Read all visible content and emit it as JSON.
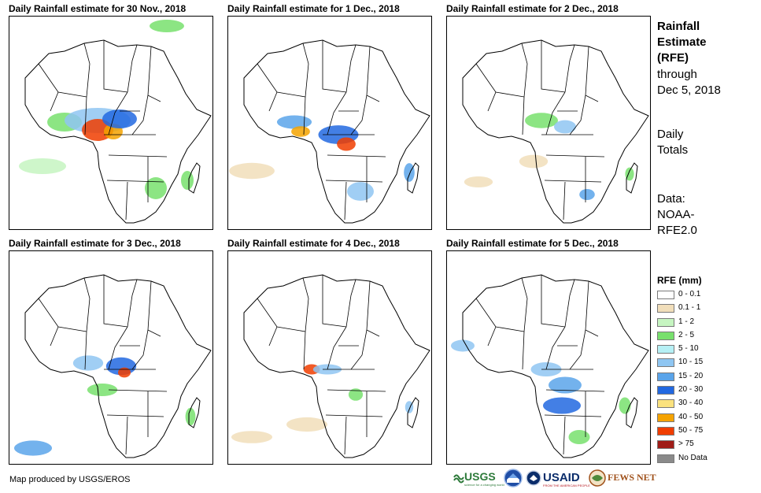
{
  "panels": [
    {
      "title": "Daily Rainfall estimate for 30 Nov., 2018",
      "intensity": 1.0
    },
    {
      "title": "Daily Rainfall estimate for 1 Dec., 2018",
      "intensity": 0.85
    },
    {
      "title": "Daily Rainfall estimate for 2 Dec., 2018",
      "intensity": 0.7
    },
    {
      "title": "Daily Rainfall estimate for 3 Dec., 2018",
      "intensity": 0.8
    },
    {
      "title": "Daily Rainfall estimate for 4 Dec., 2018",
      "intensity": 0.65
    },
    {
      "title": "Daily Rainfall estimate for 5 Dec., 2018",
      "intensity": 0.75
    }
  ],
  "sidebar": {
    "heading_line1": "Rainfall",
    "heading_line2": "Estimate",
    "heading_line3": "(RFE)",
    "through": "through",
    "through_date": "Dec 5, 2018",
    "daily_line1": "Daily",
    "daily_line2": "Totals",
    "data_line1": "Data:",
    "data_line2": "NOAA-",
    "data_line3": "RFE2.0"
  },
  "legend": {
    "title": "RFE (mm)",
    "items": [
      {
        "label": "0 - 0.1",
        "color": "#ffffff"
      },
      {
        "label": "0.1 - 1",
        "color": "#f1deba"
      },
      {
        "label": "1 - 2",
        "color": "#c6f5c1"
      },
      {
        "label": "2 - 5",
        "color": "#78e06d"
      },
      {
        "label": "5 - 10",
        "color": "#b6f0f5"
      },
      {
        "label": "10 - 15",
        "color": "#8fc6f2"
      },
      {
        "label": "15 - 20",
        "color": "#5aa4ea"
      },
      {
        "label": "20 - 30",
        "color": "#2268e0"
      },
      {
        "label": "30 - 40",
        "color": "#fbe27e"
      },
      {
        "label": "40 - 50",
        "color": "#f5a300"
      },
      {
        "label": "50 - 75",
        "color": "#f03d00"
      },
      {
        "label": "> 75",
        "color": "#a01d18"
      },
      {
        "label": "No Data",
        "color": "#8a8a8a"
      }
    ]
  },
  "footer": {
    "credit": "Map produced by USGS/EROS"
  },
  "logos": {
    "usgs": "USGS",
    "usgs_tagline": "science for a changing world",
    "noaa": "NOAA",
    "usaid": "USAID",
    "usaid_tagline": "FROM THE AMERICAN PEOPLE",
    "fewsnet": "FEWS NET"
  }
}
